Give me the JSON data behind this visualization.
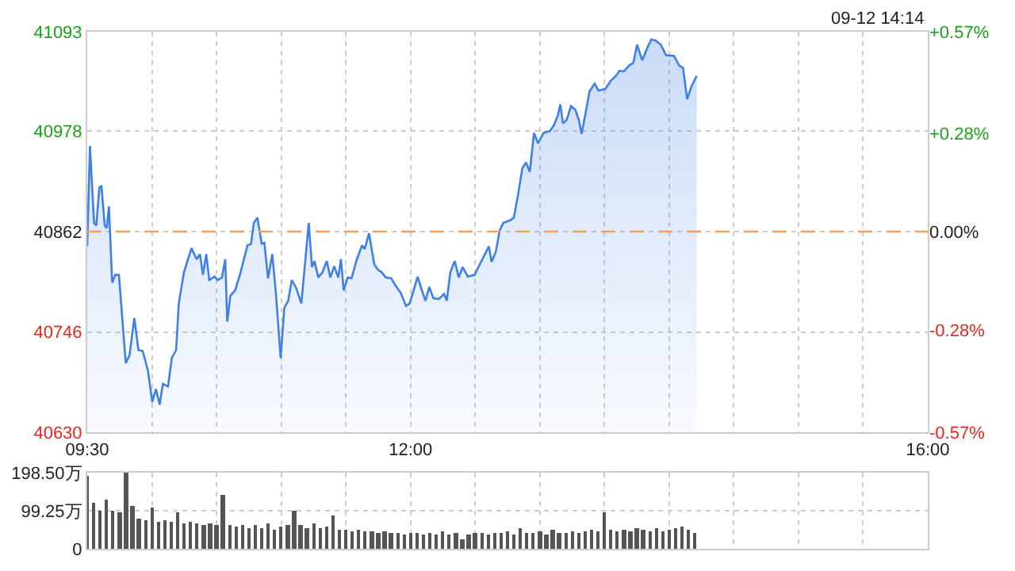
{
  "chart_data": [
    {
      "type": "area",
      "annotations": [
        "09-12 14:14"
      ],
      "x": [
        9.5,
        9.521,
        9.553,
        9.57,
        9.594,
        9.61,
        9.635,
        9.651,
        9.668,
        9.693,
        9.717,
        9.745,
        9.798,
        9.827,
        9.864,
        9.896,
        9.929,
        9.97,
        10.003,
        10.031,
        10.06,
        10.085,
        10.125,
        10.154,
        10.187,
        10.208,
        10.248,
        10.306,
        10.346,
        10.371,
        10.395,
        10.42,
        10.444,
        10.485,
        10.509,
        10.542,
        10.567,
        10.583,
        10.607,
        10.644,
        10.686,
        10.739,
        10.767,
        10.788,
        10.816,
        10.849,
        10.87,
        10.898,
        10.931,
        10.959,
        10.996,
        11.024,
        11.054,
        11.082,
        11.115,
        11.156,
        11.213,
        11.238,
        11.257,
        11.287,
        11.319,
        11.352,
        11.38,
        11.41,
        11.441,
        11.462,
        11.483,
        11.515,
        11.544,
        11.585,
        11.625,
        11.646,
        11.679,
        11.72,
        11.748,
        11.777,
        11.809,
        11.851,
        11.883,
        11.925,
        11.965,
        11.994,
        12.055,
        12.088,
        12.116,
        12.145,
        12.177,
        12.219,
        12.259,
        12.28,
        12.308,
        12.342,
        12.373,
        12.403,
        12.443,
        12.496,
        12.525,
        12.566,
        12.606,
        12.627,
        12.66,
        12.689,
        12.717,
        12.771,
        12.799,
        12.832,
        12.864,
        12.893,
        12.922,
        12.955,
        12.987,
        13.028,
        13.077,
        13.109,
        13.139,
        13.158,
        13.179,
        13.207,
        13.241,
        13.274,
        13.302,
        13.323,
        13.355,
        13.384,
        13.424,
        13.453,
        13.507,
        13.547,
        13.588,
        13.617,
        13.649,
        13.691,
        13.723,
        13.752,
        13.792,
        13.833,
        13.862,
        13.894,
        13.936,
        13.976,
        14.038,
        14.078,
        14.108,
        14.139,
        14.173,
        14.213
      ],
      "series": [
        {
          "color": "#3f7fe8",
          "values": [
            40845,
            40961,
            40872,
            40869,
            40913,
            40915,
            40869,
            40866,
            40891,
            40803,
            40812,
            40812,
            40710,
            40719,
            40762,
            40725,
            40724,
            40701,
            40665,
            40680,
            40662,
            40686,
            40683,
            40716,
            40725,
            40779,
            40815,
            40843,
            40830,
            40836,
            40812,
            40836,
            40806,
            40810,
            40806,
            40809,
            40830,
            40758,
            40788,
            40794,
            40815,
            40846,
            40848,
            40872,
            40878,
            40848,
            40849,
            40808,
            40836,
            40791,
            40716,
            40774,
            40782,
            40806,
            40797,
            40779,
            40872,
            40821,
            40828,
            40809,
            40815,
            40828,
            40809,
            40822,
            40809,
            40830,
            40794,
            40809,
            40808,
            40830,
            40846,
            40842,
            40860,
            40824,
            40818,
            40815,
            40809,
            40808,
            40800,
            40791,
            40776,
            40779,
            40810,
            40794,
            40782,
            40798,
            40785,
            40784,
            40790,
            40782,
            40815,
            40828,
            40809,
            40821,
            40810,
            40812,
            40821,
            40833,
            40845,
            40827,
            40839,
            40863,
            40872,
            40875,
            40878,
            40905,
            40935,
            40942,
            40931,
            40976,
            40964,
            40976,
            40978,
            40985,
            40996,
            41009,
            40987,
            40991,
            41007,
            41003,
            40991,
            40975,
            41000,
            41024,
            41033,
            41025,
            41027,
            41036,
            41042,
            41048,
            41047,
            41054,
            41057,
            41078,
            41060,
            41075,
            41084,
            41083,
            41078,
            41066,
            41065,
            41054,
            41051,
            41015,
            41030,
            41042
          ]
        }
      ],
      "xlim": [
        9.5,
        16
      ],
      "xticks": [
        {
          "value": 9.5,
          "label": "09:30"
        },
        {
          "value": 10,
          "label": null
        },
        {
          "value": 10.5,
          "label": null
        },
        {
          "value": 11,
          "label": null
        },
        {
          "value": 11.5,
          "label": null
        },
        {
          "value": 12,
          "label": "12:00"
        },
        {
          "value": 12.5,
          "label": null
        },
        {
          "value": 13,
          "label": null
        },
        {
          "value": 13.5,
          "label": null
        },
        {
          "value": 14,
          "label": null
        },
        {
          "value": 14.5,
          "label": null
        },
        {
          "value": 15,
          "label": null
        },
        {
          "value": 15.5,
          "label": null
        },
        {
          "value": 16,
          "label": "16:00"
        }
      ],
      "ylim": [
        40630,
        41093
      ],
      "yticks": [
        40630,
        40746,
        40862,
        40978,
        41093
      ],
      "y2lim": [
        -0.57,
        0.57
      ],
      "y2ticks": [
        {
          "value": -0.57,
          "label": "-0.57%"
        },
        {
          "value": -0.28,
          "label": "-0.28%"
        },
        {
          "value": 0,
          "label": "0.00%"
        },
        {
          "value": 0.28,
          "label": "+0.28%"
        },
        {
          "value": 0.57,
          "label": "+0.57%"
        }
      ],
      "ref_lines": [
        {
          "axis": "y",
          "value": 40862,
          "color": "#f5a05a",
          "line_style": "dashed"
        }
      ],
      "grid": true,
      "marker": "none",
      "line_style": "solid"
    },
    {
      "type": "bar",
      "tick_labels": "y",
      "color": "#555555",
      "x": [
        9.5,
        9.55,
        9.6,
        9.65,
        9.7,
        9.75,
        9.8,
        9.85,
        9.9,
        9.95,
        10.0,
        10.05,
        10.1,
        10.15,
        10.2,
        10.25,
        10.3,
        10.35,
        10.4,
        10.45,
        10.5,
        10.55,
        10.6,
        10.65,
        10.7,
        10.75,
        10.8,
        10.85,
        10.9,
        10.95,
        11.0,
        11.05,
        11.1,
        11.15,
        11.2,
        11.25,
        11.3,
        11.35,
        11.4,
        11.45,
        11.5,
        11.55,
        11.6,
        11.65,
        11.7,
        11.75,
        11.8,
        11.85,
        11.9,
        11.95,
        12.0,
        12.05,
        12.1,
        12.15,
        12.2,
        12.25,
        12.3,
        12.35,
        12.4,
        12.45,
        12.5,
        12.55,
        12.6,
        12.65,
        12.7,
        12.75,
        12.8,
        12.85,
        12.9,
        12.95,
        13.0,
        13.05,
        13.1,
        13.15,
        13.2,
        13.25,
        13.3,
        13.35,
        13.4,
        13.45,
        13.5,
        13.55,
        13.6,
        13.65,
        13.7,
        13.75,
        13.8,
        13.85,
        13.9,
        13.95,
        14.0,
        14.05,
        14.1,
        14.15,
        14.2
      ],
      "values": [
        191,
        118,
        101,
        130,
        100,
        95,
        198,
        113,
        78,
        75,
        107,
        72,
        75,
        70,
        97,
        68,
        72,
        65,
        62,
        66,
        60,
        139,
        62,
        58,
        60,
        55,
        63,
        52,
        66,
        50,
        58,
        62,
        101,
        60,
        55,
        65,
        52,
        58,
        86,
        50,
        48,
        46,
        50,
        44,
        47,
        42,
        45,
        40,
        43,
        38,
        42,
        40,
        37,
        42,
        38,
        45,
        36,
        40,
        24,
        38,
        42,
        40,
        37,
        43,
        40,
        45,
        38,
        55,
        42,
        40,
        45,
        38,
        48,
        42,
        40,
        47,
        42,
        45,
        50,
        44,
        97,
        48,
        45,
        50,
        44,
        55,
        48,
        46,
        52,
        45,
        50,
        55,
        58,
        50,
        40
      ],
      "xlim": [
        9.5,
        16
      ],
      "xticks": [
        {
          "value": 9.5,
          "label": null
        },
        {
          "value": 10,
          "label": null
        },
        {
          "value": 10.5,
          "label": null
        },
        {
          "value": 11,
          "label": null
        },
        {
          "value": 11.5,
          "label": null
        },
        {
          "value": 12,
          "label": null
        },
        {
          "value": 12.5,
          "label": null
        },
        {
          "value": 13,
          "label": null
        },
        {
          "value": 13.5,
          "label": null
        },
        {
          "value": 14,
          "label": null
        },
        {
          "value": 14.5,
          "label": null
        },
        {
          "value": 15,
          "label": null
        },
        {
          "value": 15.5,
          "label": null
        },
        {
          "value": 16,
          "label": null
        }
      ],
      "ylim": [
        0,
        198.5
      ],
      "yticks": [
        0,
        {
          "value": 99.25,
          "label": "99.25万"
        },
        {
          "value": 198.5,
          "label": "198.50万"
        }
      ],
      "grid": true
    }
  ]
}
